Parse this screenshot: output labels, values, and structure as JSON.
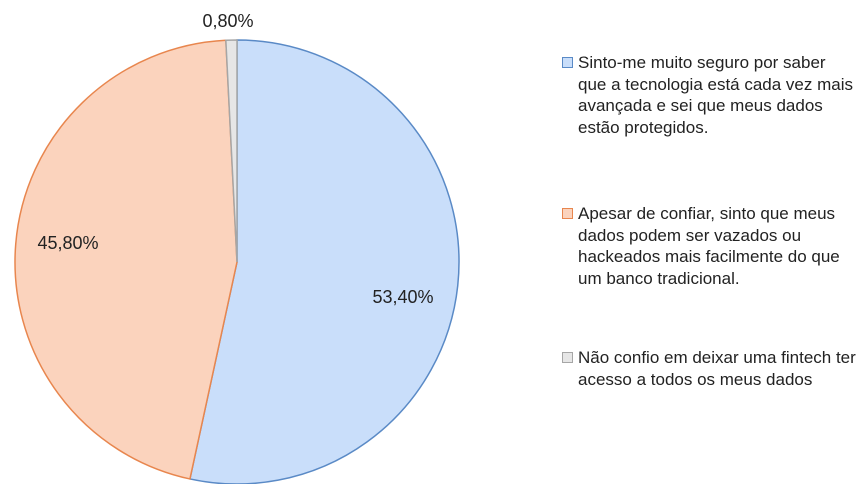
{
  "chart_data": {
    "type": "pie",
    "categories": [
      "Sinto-me muito seguro por saber que a tecnologia está cada vez mais avançada e sei que meus dados estão protegidos.",
      "Apesar de confiar, sinto que meus dados podem ser vazados ou hackeados mais facilmente do que um banco tradicional.",
      "Não confio em deixar uma fintech ter acesso a todos os meus dados"
    ],
    "values": [
      53.4,
      45.8,
      0.8
    ],
    "value_labels": [
      "53,40%",
      "45,80%",
      "0,80%"
    ],
    "colors": [
      "#c9defa",
      "#fbd3bd",
      "#e6e6e6"
    ],
    "legend": "right"
  }
}
